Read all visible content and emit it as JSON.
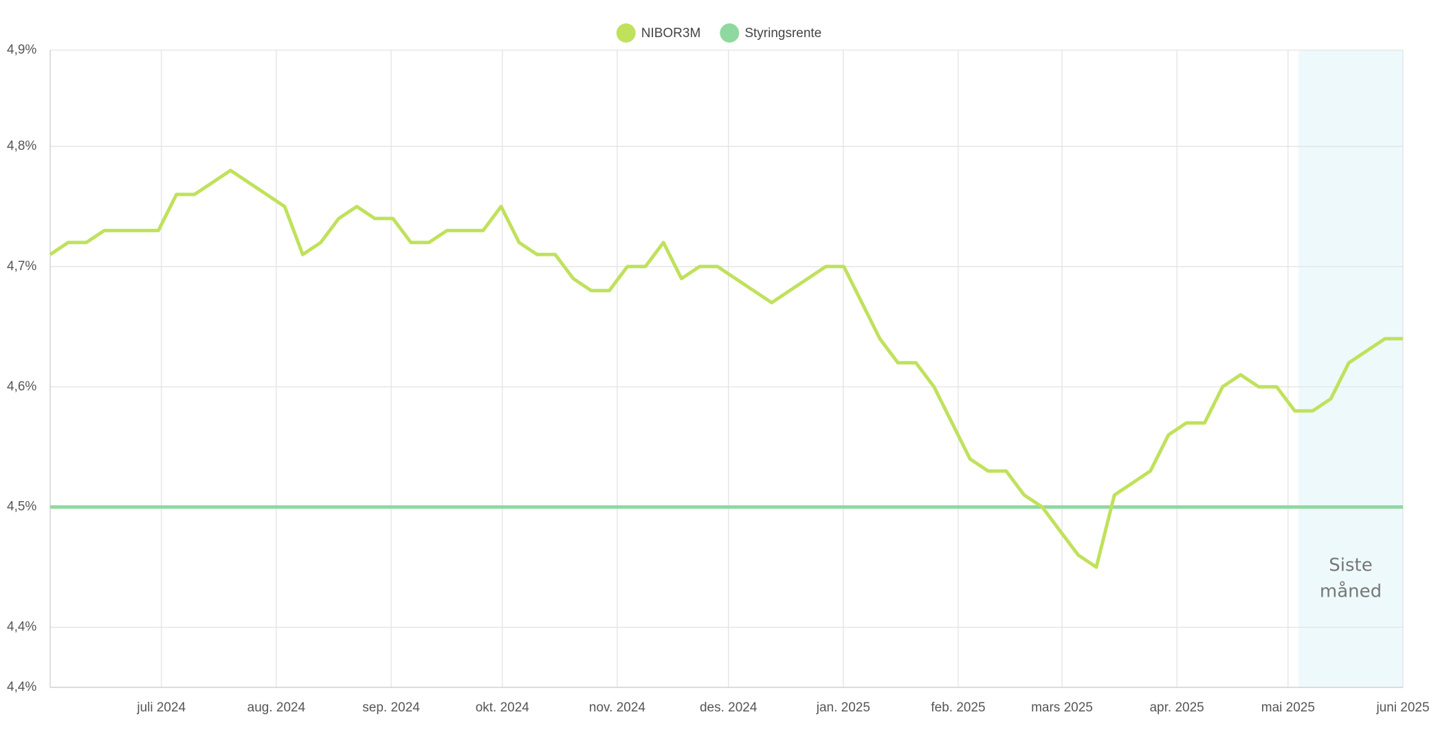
{
  "chart_data": {
    "type": "line",
    "xlim": [
      "2024-06",
      "2025-06"
    ],
    "xticks": [
      {
        "value": "2024-07",
        "label": "juli 2024"
      },
      {
        "value": "2024-08",
        "label": "aug. 2024"
      },
      {
        "value": "2024-09",
        "label": "sep. 2024"
      },
      {
        "value": "2024-10",
        "label": "okt. 2024"
      },
      {
        "value": "2024-11",
        "label": "nov. 2024"
      },
      {
        "value": "2024-12",
        "label": "des. 2024"
      },
      {
        "value": "2025-01",
        "label": "jan. 2025"
      },
      {
        "value": "2025-02",
        "label": "feb. 2025"
      },
      {
        "value": "2025-03",
        "label": "mars 2025"
      },
      {
        "value": "2025-04",
        "label": "apr. 2025"
      },
      {
        "value": "2025-05",
        "label": "mai 2025"
      },
      {
        "value": "2025-06",
        "label": "juni 2025"
      }
    ],
    "ylim": [
      4.35,
      4.88
    ],
    "yticks": [
      {
        "value": 4.35,
        "label": "4,4%"
      },
      {
        "value": 4.4,
        "label": "4,4%"
      },
      {
        "value": 4.5,
        "label": "4,5%"
      },
      {
        "value": 4.6,
        "label": "4,6%"
      },
      {
        "value": 4.7,
        "label": "4,7%"
      },
      {
        "value": 4.8,
        "label": "4,8%"
      },
      {
        "value": 4.88,
        "label": "4,9%"
      }
    ],
    "grid": true,
    "legend": "top",
    "annotation": [
      "Siste",
      "måned"
    ],
    "band_color": "#eef9fc",
    "series": [
      {
        "name": "NIBOR3M",
        "color": "#c0e15c",
        "values": [
          4.71,
          4.72,
          4.72,
          4.73,
          4.73,
          4.73,
          4.73,
          4.76,
          4.76,
          4.77,
          4.78,
          4.77,
          4.76,
          4.75,
          4.71,
          4.72,
          4.74,
          4.75,
          4.74,
          4.74,
          4.72,
          4.72,
          4.73,
          4.73,
          4.73,
          4.75,
          4.72,
          4.71,
          4.71,
          4.69,
          4.68,
          4.68,
          4.7,
          4.7,
          4.72,
          4.69,
          4.7,
          4.7,
          4.69,
          4.68,
          4.67,
          4.68,
          4.69,
          4.7,
          4.7,
          4.67,
          4.64,
          4.62,
          4.62,
          4.6,
          4.57,
          4.54,
          4.53,
          4.53,
          4.51,
          4.5,
          4.48,
          4.46,
          4.45,
          4.51,
          4.52,
          4.53,
          4.56,
          4.57,
          4.57,
          4.6,
          4.61,
          4.6,
          4.6,
          4.58,
          4.58,
          4.59,
          4.62,
          4.63,
          4.64,
          4.64
        ]
      },
      {
        "name": "Styringsrente",
        "color": "#8fd8a0",
        "values": [
          4.5,
          4.5,
          4.5,
          4.5,
          4.5,
          4.5,
          4.5,
          4.5,
          4.5,
          4.5,
          4.5,
          4.5,
          4.5,
          4.5,
          4.5,
          4.5,
          4.5,
          4.5,
          4.5,
          4.5,
          4.5,
          4.5,
          4.5,
          4.5,
          4.5,
          4.5,
          4.5,
          4.5,
          4.5,
          4.5,
          4.5,
          4.5,
          4.5,
          4.5,
          4.5,
          4.5,
          4.5,
          4.5,
          4.5,
          4.5,
          4.5,
          4.5,
          4.5,
          4.5,
          4.5,
          4.5,
          4.5,
          4.5,
          4.5,
          4.5,
          4.5,
          4.5,
          4.5,
          4.5,
          4.5,
          4.5,
          4.5,
          4.5,
          4.5,
          4.5,
          4.5,
          4.5,
          4.5,
          4.5,
          4.5,
          4.5,
          4.5,
          4.5,
          4.5,
          4.5,
          4.5,
          4.5,
          4.5,
          4.5,
          4.5,
          4.5
        ]
      }
    ]
  }
}
